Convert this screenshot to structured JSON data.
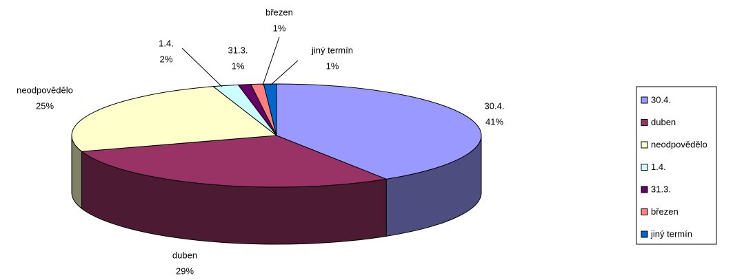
{
  "chart_data": {
    "type": "pie",
    "categories": [
      "30.4.",
      "duben",
      "neodpovědělo",
      "1.4.",
      "31.3.",
      "březen",
      "jiný termín"
    ],
    "values": [
      41,
      29,
      25,
      2,
      1,
      1,
      1
    ],
    "value_labels": [
      "41%",
      "29%",
      "25%",
      "2%",
      "1%",
      "1%",
      "1%"
    ],
    "colors": [
      "#9999ff",
      "#993366",
      "#ffffcc",
      "#ccffff",
      "#660066",
      "#ff8080",
      "#0066cc"
    ],
    "legend": "right"
  }
}
